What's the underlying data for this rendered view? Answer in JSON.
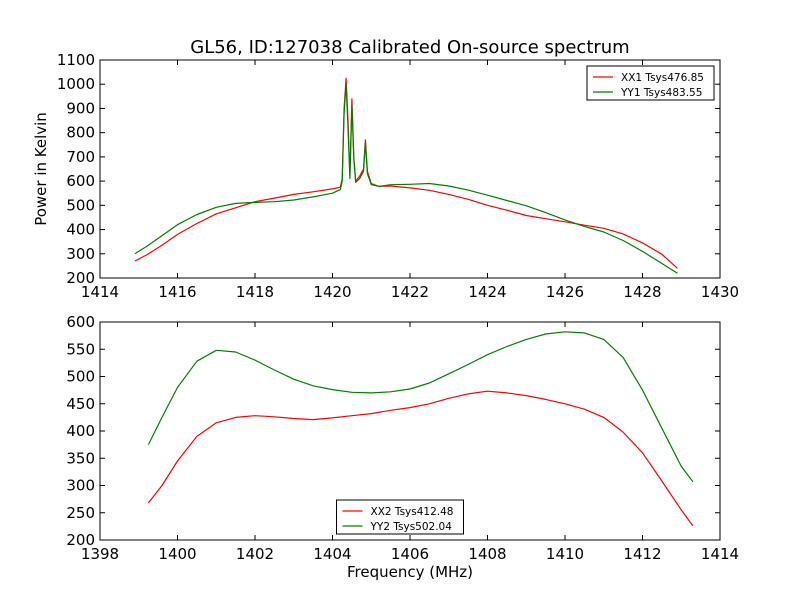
{
  "title": "GL56, ID:127038 Calibrated On-source spectrum",
  "chart_data": [
    {
      "type": "line",
      "ylabel": "Power in Kelvin",
      "xlabel": "",
      "xlim": [
        1414,
        1430
      ],
      "ylim": [
        200,
        1100
      ],
      "xticks": [
        1414,
        1416,
        1418,
        1420,
        1422,
        1424,
        1426,
        1428,
        1430
      ],
      "yticks": [
        200,
        300,
        400,
        500,
        600,
        700,
        800,
        900,
        1000,
        1100
      ],
      "legend_position": "top-right",
      "series": [
        {
          "name": "XX1 Tsys476.85",
          "color": "#ff0000",
          "points": [
            [
              1414.9,
              270
            ],
            [
              1415.2,
              295
            ],
            [
              1415.6,
              335
            ],
            [
              1416.0,
              380
            ],
            [
              1416.5,
              425
            ],
            [
              1417.0,
              465
            ],
            [
              1417.5,
              490
            ],
            [
              1418.0,
              515
            ],
            [
              1418.5,
              530
            ],
            [
              1419.0,
              545
            ],
            [
              1419.5,
              556
            ],
            [
              1420.0,
              568
            ],
            [
              1420.2,
              575
            ],
            [
              1420.25,
              610
            ],
            [
              1420.3,
              900
            ],
            [
              1420.35,
              1025
            ],
            [
              1420.4,
              850
            ],
            [
              1420.45,
              620
            ],
            [
              1420.5,
              940
            ],
            [
              1420.55,
              700
            ],
            [
              1420.6,
              600
            ],
            [
              1420.7,
              620
            ],
            [
              1420.8,
              650
            ],
            [
              1420.85,
              770
            ],
            [
              1420.9,
              640
            ],
            [
              1421.0,
              590
            ],
            [
              1421.2,
              578
            ],
            [
              1421.5,
              580
            ],
            [
              1422.0,
              572
            ],
            [
              1422.5,
              562
            ],
            [
              1423.0,
              545
            ],
            [
              1423.5,
              525
            ],
            [
              1424.0,
              500
            ],
            [
              1424.5,
              480
            ],
            [
              1425.0,
              458
            ],
            [
              1425.5,
              445
            ],
            [
              1426.0,
              432
            ],
            [
              1426.5,
              418
            ],
            [
              1427.0,
              405
            ],
            [
              1427.5,
              382
            ],
            [
              1428.0,
              345
            ],
            [
              1428.5,
              298
            ],
            [
              1428.9,
              240
            ]
          ]
        },
        {
          "name": "YY1 Tsys483.55",
          "color": "#008000",
          "points": [
            [
              1414.9,
              300
            ],
            [
              1415.2,
              330
            ],
            [
              1415.6,
              375
            ],
            [
              1416.0,
              420
            ],
            [
              1416.5,
              462
            ],
            [
              1417.0,
              492
            ],
            [
              1417.5,
              508
            ],
            [
              1418.0,
              512
            ],
            [
              1418.5,
              515
            ],
            [
              1419.0,
              522
            ],
            [
              1419.5,
              535
            ],
            [
              1420.0,
              550
            ],
            [
              1420.2,
              565
            ],
            [
              1420.25,
              600
            ],
            [
              1420.3,
              880
            ],
            [
              1420.35,
              1000
            ],
            [
              1420.4,
              820
            ],
            [
              1420.45,
              610
            ],
            [
              1420.5,
              915
            ],
            [
              1420.55,
              690
            ],
            [
              1420.6,
              595
            ],
            [
              1420.7,
              610
            ],
            [
              1420.8,
              640
            ],
            [
              1420.85,
              760
            ],
            [
              1420.9,
              630
            ],
            [
              1421.0,
              585
            ],
            [
              1421.2,
              578
            ],
            [
              1421.5,
              585
            ],
            [
              1422.0,
              587
            ],
            [
              1422.5,
              590
            ],
            [
              1423.0,
              580
            ],
            [
              1423.5,
              563
            ],
            [
              1424.0,
              542
            ],
            [
              1424.5,
              520
            ],
            [
              1425.0,
              498
            ],
            [
              1425.5,
              470
            ],
            [
              1426.0,
              440
            ],
            [
              1426.5,
              413
            ],
            [
              1427.0,
              390
            ],
            [
              1427.5,
              355
            ],
            [
              1428.0,
              310
            ],
            [
              1428.5,
              260
            ],
            [
              1428.9,
              220
            ]
          ]
        }
      ]
    },
    {
      "type": "line",
      "ylabel": "",
      "xlabel": "Frequency (MHz)",
      "xlim": [
        1398,
        1414
      ],
      "ylim": [
        200,
        600
      ],
      "xticks": [
        1398,
        1400,
        1402,
        1404,
        1406,
        1408,
        1410,
        1412,
        1414
      ],
      "yticks": [
        200,
        250,
        300,
        350,
        400,
        450,
        500,
        550,
        600
      ],
      "legend_position": "bottom-center",
      "series": [
        {
          "name": "XX2 Tsys412.48",
          "color": "#ff0000",
          "points": [
            [
              1399.25,
              268
            ],
            [
              1399.6,
              300
            ],
            [
              1400.0,
              345
            ],
            [
              1400.5,
              390
            ],
            [
              1401.0,
              415
            ],
            [
              1401.5,
              425
            ],
            [
              1402.0,
              428
            ],
            [
              1402.5,
              426
            ],
            [
              1403.0,
              423
            ],
            [
              1403.5,
              421
            ],
            [
              1404.0,
              424
            ],
            [
              1404.5,
              428
            ],
            [
              1405.0,
              432
            ],
            [
              1405.5,
              438
            ],
            [
              1406.0,
              443
            ],
            [
              1406.5,
              450
            ],
            [
              1407.0,
              460
            ],
            [
              1407.5,
              468
            ],
            [
              1408.0,
              473
            ],
            [
              1408.5,
              470
            ],
            [
              1409.0,
              465
            ],
            [
              1409.5,
              458
            ],
            [
              1410.0,
              450
            ],
            [
              1410.5,
              440
            ],
            [
              1411.0,
              425
            ],
            [
              1411.5,
              398
            ],
            [
              1412.0,
              360
            ],
            [
              1412.5,
              308
            ],
            [
              1413.0,
              255
            ],
            [
              1413.3,
              226
            ]
          ]
        },
        {
          "name": "YY2 Tsys502.04",
          "color": "#008000",
          "points": [
            [
              1399.25,
              375
            ],
            [
              1399.6,
              425
            ],
            [
              1400.0,
              480
            ],
            [
              1400.5,
              528
            ],
            [
              1401.0,
              548
            ],
            [
              1401.5,
              545
            ],
            [
              1402.0,
              530
            ],
            [
              1402.5,
              512
            ],
            [
              1403.0,
              495
            ],
            [
              1403.5,
              483
            ],
            [
              1404.0,
              476
            ],
            [
              1404.5,
              471
            ],
            [
              1405.0,
              470
            ],
            [
              1405.5,
              472
            ],
            [
              1406.0,
              477
            ],
            [
              1406.5,
              488
            ],
            [
              1407.0,
              505
            ],
            [
              1407.5,
              522
            ],
            [
              1408.0,
              540
            ],
            [
              1408.5,
              555
            ],
            [
              1409.0,
              568
            ],
            [
              1409.5,
              578
            ],
            [
              1410.0,
              582
            ],
            [
              1410.5,
              580
            ],
            [
              1411.0,
              568
            ],
            [
              1411.5,
              535
            ],
            [
              1412.0,
              475
            ],
            [
              1412.5,
              405
            ],
            [
              1413.0,
              335
            ],
            [
              1413.3,
              307
            ]
          ]
        }
      ]
    }
  ]
}
